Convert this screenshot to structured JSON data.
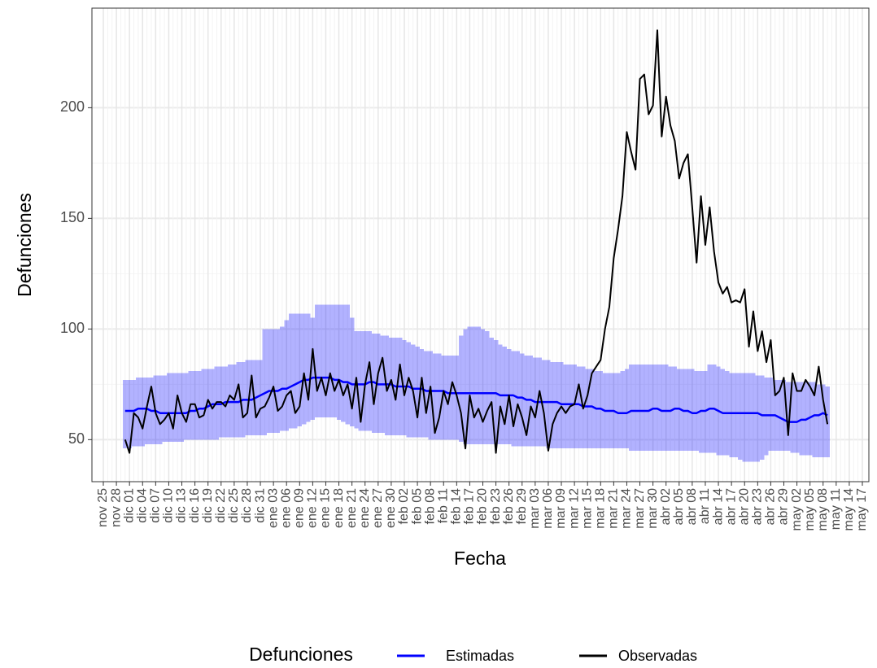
{
  "chart_data": {
    "type": "line",
    "y_label": "Defunciones",
    "x_label": "Fecha",
    "legend_title": "Defunciones",
    "categories": [
      "nov 25",
      null,
      null,
      "nov 28",
      null,
      null,
      "dic 01",
      null,
      null,
      "dic 04",
      null,
      null,
      "dic 07",
      null,
      null,
      "dic 10",
      null,
      null,
      "dic 13",
      null,
      null,
      "dic 16",
      null,
      null,
      "dic 19",
      null,
      null,
      "dic 22",
      null,
      null,
      "dic 25",
      null,
      null,
      "dic 28",
      null,
      null,
      "dic 31",
      null,
      null,
      "ene 03",
      null,
      null,
      "ene 06",
      null,
      null,
      "ene 09",
      null,
      null,
      "ene 12",
      null,
      null,
      "ene 15",
      null,
      null,
      "ene 18",
      null,
      null,
      "ene 21",
      null,
      null,
      "ene 24",
      null,
      null,
      "ene 27",
      null,
      null,
      "ene 30",
      null,
      null,
      "feb 02",
      null,
      null,
      "feb 05",
      null,
      null,
      "feb 08",
      null,
      null,
      "feb 11",
      null,
      null,
      "feb 14",
      null,
      null,
      "feb 17",
      null,
      null,
      "feb 20",
      null,
      null,
      "feb 23",
      null,
      null,
      "feb 26",
      null,
      null,
      "feb 29",
      null,
      null,
      "mar 03",
      null,
      null,
      "mar 06",
      null,
      null,
      "mar 09",
      null,
      null,
      "mar 12",
      null,
      null,
      "mar 15",
      null,
      null,
      "mar 18",
      null,
      null,
      "mar 21",
      null,
      null,
      "mar 24",
      null,
      null,
      "mar 27",
      null,
      null,
      "mar 30",
      null,
      null,
      "abr 02",
      null,
      null,
      "abr 05",
      null,
      null,
      "abr 08",
      null,
      null,
      "abr 11",
      null,
      null,
      "abr 14",
      null,
      null,
      "abr 17",
      null,
      null,
      "abr 20",
      null,
      null,
      "abr 23",
      null,
      null,
      "abr 26",
      null,
      null,
      "abr 29",
      null,
      null,
      "may 02",
      null,
      null,
      "may 05",
      null,
      null,
      "may 08",
      null,
      null,
      "may 11",
      null,
      null,
      "may 14",
      null,
      null,
      "may 17"
    ],
    "series": [
      {
        "name": "Estimadas",
        "color": "#0000ff",
        "values": [
          null,
          null,
          null,
          null,
          null,
          63,
          63,
          63,
          64,
          64,
          64,
          63,
          63,
          62,
          62,
          62,
          62,
          62,
          62,
          62,
          63,
          63,
          64,
          64,
          65,
          66,
          66,
          66,
          67,
          67,
          67,
          67,
          68,
          68,
          68,
          69,
          70,
          71,
          72,
          72,
          72,
          73,
          73,
          74,
          75,
          76,
          77,
          77,
          78,
          78,
          78,
          78,
          78,
          77,
          77,
          76,
          76,
          75,
          75,
          75,
          75,
          76,
          76,
          75,
          75,
          75,
          75,
          74,
          74,
          74,
          74,
          73,
          73,
          73,
          72,
          72,
          72,
          72,
          72,
          71,
          71,
          71,
          71,
          71,
          71,
          71,
          71,
          71,
          71,
          71,
          71,
          70,
          70,
          70,
          70,
          69,
          69,
          68,
          68,
          67,
          67,
          67,
          67,
          67,
          67,
          66,
          66,
          66,
          66,
          66,
          65,
          65,
          65,
          64,
          64,
          63,
          63,
          63,
          62,
          62,
          62,
          63,
          63,
          63,
          63,
          63,
          64,
          64,
          63,
          63,
          63,
          64,
          64,
          63,
          63,
          62,
          62,
          63,
          63,
          64,
          64,
          63,
          62,
          62,
          62,
          62,
          62,
          62,
          62,
          62,
          62,
          61,
          61,
          61,
          61,
          60,
          59,
          58,
          58,
          58,
          59,
          59,
          60,
          61,
          61,
          62,
          61,
          null,
          null,
          null,
          null,
          null,
          null,
          null,
          null
        ]
      },
      {
        "name": "Observadas",
        "color": "#000000",
        "values": [
          null,
          null,
          null,
          null,
          null,
          50,
          44,
          62,
          60,
          55,
          65,
          74,
          62,
          57,
          59,
          62,
          55,
          70,
          62,
          58,
          66,
          66,
          60,
          61,
          68,
          64,
          67,
          67,
          65,
          70,
          68,
          75,
          60,
          62,
          79,
          60,
          64,
          65,
          69,
          74,
          63,
          65,
          70,
          72,
          62,
          65,
          80,
          68,
          91,
          72,
          78,
          70,
          80,
          72,
          77,
          70,
          75,
          64,
          78,
          58,
          75,
          85,
          66,
          80,
          87,
          72,
          77,
          68,
          84,
          70,
          78,
          72,
          60,
          78,
          62,
          74,
          53,
          60,
          72,
          66,
          76,
          70,
          62,
          46,
          70,
          60,
          64,
          58,
          63,
          67,
          44,
          65,
          57,
          70,
          56,
          66,
          60,
          52,
          65,
          60,
          72,
          62,
          45,
          57,
          62,
          65,
          62,
          65,
          66,
          75,
          64,
          70,
          80,
          83,
          86,
          100,
          110,
          132,
          145,
          160,
          189,
          180,
          172,
          213,
          215,
          197,
          201,
          235,
          187,
          205,
          192,
          185,
          168,
          175,
          179,
          155,
          130,
          160,
          138,
          155,
          135,
          121,
          116,
          119,
          112,
          113,
          112,
          118,
          92,
          108,
          90,
          99,
          85,
          95,
          70,
          72,
          78,
          52,
          80,
          72,
          72,
          77,
          74,
          70,
          83,
          68,
          57,
          null,
          null,
          null,
          null,
          null,
          null,
          null,
          null
        ]
      }
    ],
    "band": {
      "color": "#0000ff",
      "upper": [
        null,
        null,
        null,
        null,
        null,
        77,
        77,
        77,
        78,
        78,
        78,
        78,
        79,
        79,
        79,
        80,
        80,
        80,
        80,
        80,
        81,
        81,
        81,
        82,
        82,
        82,
        83,
        83,
        83,
        84,
        84,
        85,
        85,
        86,
        86,
        86,
        86,
        100,
        100,
        100,
        100,
        101,
        104,
        107,
        107,
        107,
        107,
        107,
        105,
        111,
        111,
        111,
        111,
        111,
        111,
        111,
        111,
        105,
        99,
        99,
        99,
        99,
        98,
        98,
        97,
        97,
        96,
        96,
        96,
        95,
        94,
        93,
        92,
        91,
        90,
        90,
        89,
        89,
        88,
        88,
        88,
        88,
        97,
        100,
        101,
        101,
        101,
        100,
        99,
        96,
        95,
        93,
        92,
        91,
        90,
        90,
        89,
        88,
        88,
        87,
        87,
        86,
        86,
        85,
        85,
        85,
        84,
        84,
        84,
        83,
        83,
        82,
        82,
        81,
        81,
        80,
        80,
        80,
        80,
        81,
        82,
        84,
        84,
        84,
        84,
        84,
        84,
        84,
        84,
        84,
        83,
        83,
        82,
        82,
        82,
        82,
        81,
        81,
        81,
        84,
        84,
        83,
        82,
        81,
        80,
        80,
        80,
        80,
        80,
        80,
        79,
        79,
        78,
        78,
        77,
        77,
        77,
        76,
        76,
        76,
        76,
        76,
        76,
        76,
        75,
        75,
        74,
        null,
        null,
        null,
        null,
        null,
        null,
        null,
        null
      ],
      "lower": [
        null,
        null,
        null,
        null,
        null,
        46,
        46,
        47,
        47,
        47,
        48,
        48,
        48,
        48,
        49,
        49,
        49,
        49,
        49,
        50,
        50,
        50,
        50,
        50,
        50,
        50,
        50,
        51,
        51,
        51,
        51,
        51,
        51,
        52,
        52,
        52,
        52,
        52,
        53,
        53,
        53,
        54,
        54,
        55,
        55,
        56,
        57,
        58,
        59,
        60,
        60,
        60,
        60,
        60,
        59,
        58,
        57,
        56,
        55,
        54,
        54,
        54,
        53,
        53,
        53,
        52,
        52,
        52,
        52,
        52,
        51,
        51,
        51,
        51,
        51,
        50,
        50,
        50,
        50,
        50,
        50,
        50,
        49,
        48,
        48,
        48,
        48,
        48,
        48,
        48,
        48,
        48,
        48,
        48,
        47,
        47,
        47,
        47,
        47,
        47,
        47,
        47,
        46,
        46,
        46,
        46,
        46,
        46,
        46,
        46,
        46,
        46,
        46,
        46,
        46,
        46,
        46,
        46,
        46,
        46,
        46,
        45,
        45,
        45,
        45,
        45,
        45,
        45,
        45,
        45,
        45,
        45,
        45,
        45,
        45,
        45,
        45,
        44,
        44,
        44,
        44,
        43,
        43,
        43,
        42,
        42,
        41,
        40,
        40,
        40,
        40,
        41,
        43,
        45,
        45,
        45,
        45,
        45,
        44,
        44,
        43,
        43,
        43,
        42,
        42,
        42,
        42,
        null,
        null,
        null,
        null,
        null,
        null,
        null,
        null
      ]
    },
    "ylim": [
      31,
      245
    ],
    "yticks": [
      50,
      100,
      150,
      200
    ],
    "grid": true
  }
}
